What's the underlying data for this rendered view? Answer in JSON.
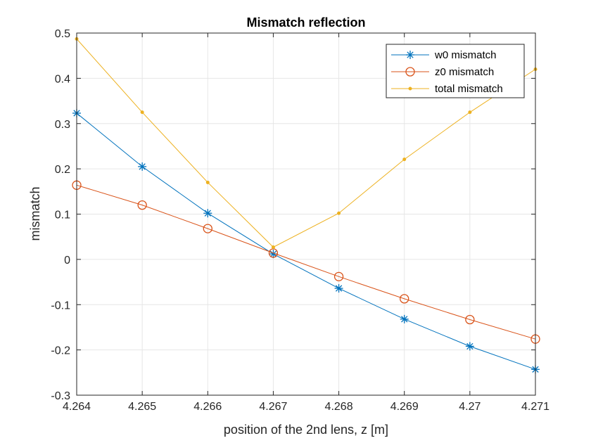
{
  "chart_data": {
    "type": "line",
    "title": "Mismatch reflection",
    "xlabel": "position of the 2nd lens, z [m]",
    "ylabel": "mismatch",
    "xlim": [
      4.264,
      4.271
    ],
    "ylim": [
      -0.3,
      0.5
    ],
    "x_ticks": [
      4.264,
      4.265,
      4.266,
      4.267,
      4.268,
      4.269,
      4.27,
      4.271
    ],
    "x_tick_labels": [
      "4.264",
      "4.265",
      "4.266",
      "4.267",
      "4.268",
      "4.269",
      "4.27",
      "4.271"
    ],
    "y_ticks": [
      -0.3,
      -0.2,
      -0.1,
      0,
      0.1,
      0.2,
      0.3,
      0.4,
      0.5
    ],
    "y_tick_labels": [
      "-0.3",
      "-0.2",
      "-0.1",
      "0",
      "0.1",
      "0.2",
      "0.3",
      "0.4",
      "0.5"
    ],
    "grid": true,
    "legend_position": "top-right",
    "x": [
      4.264,
      4.265,
      4.266,
      4.267,
      4.268,
      4.269,
      4.27,
      4.271
    ],
    "series": [
      {
        "name": "w0 mismatch",
        "color": "#0072BD",
        "marker": "asterisk",
        "values": [
          0.323,
          0.205,
          0.102,
          0.012,
          -0.064,
          -0.132,
          -0.192,
          -0.243
        ]
      },
      {
        "name": "z0 mismatch",
        "color": "#D95319",
        "marker": "circle",
        "values": [
          0.164,
          0.12,
          0.068,
          0.014,
          -0.038,
          -0.087,
          -0.133,
          -0.176
        ]
      },
      {
        "name": "total mismatch",
        "color": "#EDB120",
        "marker": "dot",
        "values": [
          0.487,
          0.325,
          0.17,
          0.027,
          0.102,
          0.221,
          0.325,
          0.42
        ]
      }
    ]
  }
}
